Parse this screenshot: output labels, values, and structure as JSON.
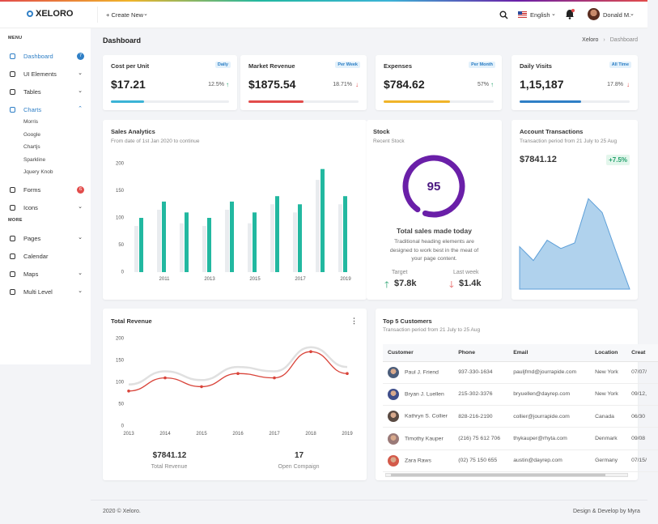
{
  "brand": "XELORO",
  "topbar": {
    "create": "+ Create New",
    "language": "English",
    "user": "Donald M."
  },
  "sidebar": {
    "menu_heading": "MENU",
    "items": [
      {
        "label": "Dashboard",
        "badge": "7",
        "active": true
      },
      {
        "label": "UI Elements",
        "expandable": true
      },
      {
        "label": "Tables",
        "expandable": true
      },
      {
        "label": "Charts",
        "expandable": true,
        "active": true,
        "subitems": [
          "Morris",
          "Google",
          "Chartjs",
          "Sparkline",
          "Jquery Knob"
        ]
      },
      {
        "label": "Forms",
        "badge": "6"
      },
      {
        "label": "Icons",
        "expandable": true
      }
    ],
    "more_heading": "MORE",
    "more_items": [
      {
        "label": "Pages",
        "expandable": true
      },
      {
        "label": "Calendar"
      },
      {
        "label": "Maps",
        "expandable": true
      },
      {
        "label": "Multi Level",
        "expandable": true
      }
    ]
  },
  "page_title": "Dashboard",
  "breadcrumb": [
    "Xeloro",
    "Dashboard"
  ],
  "progress_scale": [
    0,
    100
  ],
  "stats": [
    {
      "title": "Cost per Unit",
      "tag": "Daily",
      "value": "$17.21",
      "change": "12.5%",
      "up": true,
      "progress": 28,
      "color": "#3bb3d6"
    },
    {
      "title": "Market Revenue",
      "tag": "Per Week",
      "value": "$1875.54",
      "change": "18.71%",
      "up": false,
      "progress": 50,
      "color": "#e24c4b"
    },
    {
      "title": "Expenses",
      "tag": "Per Month",
      "value": "$784.62",
      "change": "57%",
      "up": true,
      "progress": 60,
      "color": "#f0b429"
    },
    {
      "title": "Daily Visits",
      "tag": "All Time",
      "value": "1,15,187",
      "change": "17.8%",
      "up": false,
      "progress": 56,
      "color": "#2f7fc6"
    }
  ],
  "sales_analytics": {
    "type": "bar",
    "title": "Sales Analytics",
    "subtitle": "From date of 1st Jan 2020 to continue",
    "categories": [
      null,
      "2011",
      null,
      "2013",
      null,
      "2015",
      null,
      "2017",
      null,
      "2019"
    ],
    "series": [
      {
        "color": "#e9ecef",
        "values": [
          85,
          115,
          90,
          85,
          115,
          90,
          125,
          110,
          170,
          125
        ]
      },
      {
        "color": "#22b8a0",
        "values": [
          100,
          130,
          110,
          100,
          130,
          110,
          140,
          125,
          190,
          140
        ]
      }
    ],
    "ylim": [
      0,
      200
    ],
    "yticks": [
      0,
      50,
      100,
      150,
      200
    ],
    "grid": false
  },
  "stock": {
    "type": "gauge",
    "title": "Stock",
    "subtitle": "Recent Stock",
    "value": 95,
    "range": [
      0,
      100
    ],
    "color": "#6a1fa8",
    "heading": "Total sales made today",
    "text": "Traditional heading elements are designed to work best in the meat of your page content.",
    "target_label": "Target",
    "target": "$7.8k",
    "last_week_label": "Last week",
    "last_week": "$1.4k"
  },
  "account_transactions": {
    "type": "area",
    "title": "Account Transactions",
    "subtitle": "Transaction period from 21 July to 25 Aug",
    "amount": "$7841.12",
    "change": "+7.5%",
    "values": [
      46,
      31,
      53,
      44,
      50,
      98,
      83,
      41,
      0
    ],
    "ylim": [
      0,
      100
    ],
    "color": "#8fbfe6"
  },
  "total_revenue": {
    "type": "line",
    "title": "Total Revenue",
    "categories": [
      "2013",
      "2014",
      "2015",
      "2016",
      "2017",
      "2018",
      "2019"
    ],
    "series": [
      {
        "color": "#e0e0e0",
        "values": [
          95,
          125,
          105,
          135,
          125,
          180,
          135
        ]
      },
      {
        "color": "#d9443a",
        "values": [
          80,
          110,
          90,
          120,
          110,
          170,
          120
        ]
      }
    ],
    "ylim": [
      0,
      200
    ],
    "yticks": [
      0,
      50,
      100,
      150,
      200
    ],
    "summary": [
      {
        "value": "$7841.12",
        "label": "Total Revenue"
      },
      {
        "value": "17",
        "label": "Open Compaign"
      }
    ]
  },
  "customers": {
    "title": "Top 5 Customers",
    "subtitle": "Transaction period from 21 July to 25 Aug",
    "columns": [
      "Customer",
      "Phone",
      "Email",
      "Location",
      "Creat"
    ],
    "rows": [
      [
        "Paul J. Friend",
        "937-330-1634",
        "pauljfrnd@jourrapide.com",
        "New York",
        "07/07/"
      ],
      [
        "Bryan J. Luellen",
        "215-302-3376",
        "bryuellen@dayrep.com",
        "New York",
        "09/12,"
      ],
      [
        "Kathryn S. Collier",
        "828-216-2190",
        "collier@jourrapide.com",
        "Canada",
        "06/30"
      ],
      [
        "Timothy Kauper",
        "(216) 75 612 706",
        "thykauper@rhyta.com",
        "Denmark",
        "09/08"
      ],
      [
        "Zara Raws",
        "(02) 75 150 655",
        "austin@dayrep.com",
        "Germany",
        "07/15/"
      ]
    ]
  },
  "footer": {
    "left": "2020 © Xeloro.",
    "right": "Design & Develop by Myra"
  }
}
